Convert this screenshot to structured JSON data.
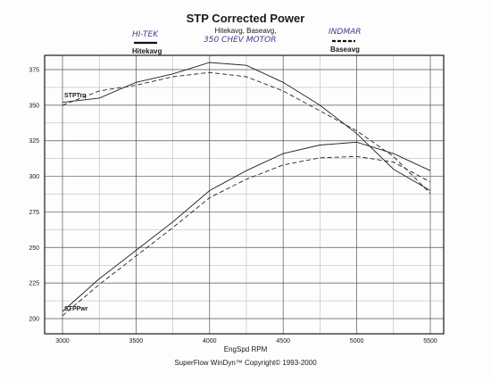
{
  "chart_data": {
    "type": "line",
    "title": "STP Corrected Power",
    "subtitle": "Hitekavg, Baseavg,",
    "handwritten_note": "350 CHEV MOTOR",
    "handwritten_labels": [
      "HI-TEK",
      "INDMAR"
    ],
    "legend": [
      "Hitekavg",
      "Baseavg"
    ],
    "xlabel": "EngSpd  RPM",
    "footer": "SuperFlow WinDyn™  Copyright© 1993-2000",
    "xlim": [
      3000,
      5500
    ],
    "ylim": [
      200,
      375
    ],
    "xticks": [
      "3000",
      "3500",
      "4000",
      "4500",
      "5000",
      "5500"
    ],
    "yticks": [
      "200",
      "225",
      "250",
      "275",
      "300",
      "325",
      "350",
      "375"
    ],
    "grid": true,
    "series": [
      {
        "name": "Hitekavg",
        "group": "STPTrq",
        "label": "STPTrq",
        "style": "solid",
        "x": [
          3000,
          3250,
          3500,
          3750,
          4000,
          4250,
          4500,
          4750,
          5000,
          5250,
          5500
        ],
        "y": [
          352,
          355,
          366,
          372,
          380,
          378,
          366,
          350,
          330,
          305,
          290
        ]
      },
      {
        "name": "Baseavg",
        "group": "STPTrq",
        "style": "dashed",
        "x": [
          3000,
          3250,
          3500,
          3750,
          4000,
          4250,
          4500,
          4750,
          5000,
          5250,
          5500
        ],
        "y": [
          350,
          360,
          364,
          370,
          373,
          370,
          360,
          346,
          332,
          314,
          288
        ]
      },
      {
        "name": "Hitekavg",
        "group": "STPPwr",
        "label": "STPPwr",
        "style": "solid",
        "x": [
          3000,
          3250,
          3500,
          3750,
          4000,
          4250,
          4500,
          4750,
          5000,
          5250,
          5500
        ],
        "y": [
          205,
          228,
          248,
          268,
          290,
          304,
          316,
          322,
          324,
          316,
          304
        ]
      },
      {
        "name": "Baseavg",
        "group": "STPPwr",
        "style": "dashed",
        "x": [
          3000,
          3250,
          3500,
          3750,
          4000,
          4250,
          4500,
          4750,
          5000,
          5250,
          5500
        ],
        "y": [
          202,
          224,
          244,
          264,
          285,
          298,
          308,
          313,
          314,
          310,
          296
        ]
      }
    ]
  }
}
